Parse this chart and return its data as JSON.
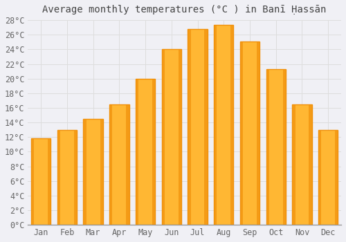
{
  "title": "Average monthly temperatures (°C ) in Banī Ḥassān",
  "months": [
    "Jan",
    "Feb",
    "Mar",
    "Apr",
    "May",
    "Jun",
    "Jul",
    "Aug",
    "Sep",
    "Oct",
    "Nov",
    "Dec"
  ],
  "temperatures": [
    11.8,
    13.0,
    14.5,
    16.5,
    20.0,
    24.0,
    26.8,
    27.3,
    25.1,
    21.3,
    16.5,
    13.0
  ],
  "bar_color_center": "#FFB733",
  "bar_color_edge": "#F0900A",
  "background_color": "#F0F0F5",
  "plot_bg_color": "#F0F0F5",
  "grid_color": "#DDDDDD",
  "text_color": "#666666",
  "title_color": "#444444",
  "axis_color": "#999999",
  "ylim": [
    0,
    28
  ],
  "ytick_step": 2,
  "title_fontsize": 10,
  "tick_fontsize": 8.5,
  "bar_width": 0.75
}
